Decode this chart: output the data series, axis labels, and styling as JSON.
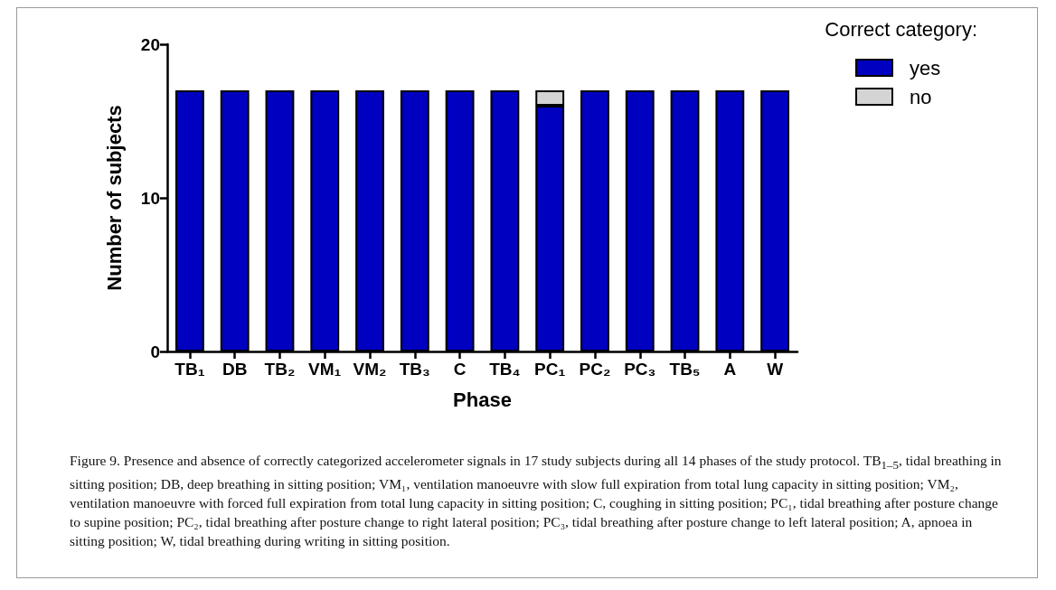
{
  "chart_data": {
    "type": "bar",
    "stacked": true,
    "xlabel": "Phase",
    "ylabel": "Number of subjects",
    "legend_title": "Correct category:",
    "legend": "top right",
    "grid": false,
    "categories": [
      "TB₁",
      "DB",
      "TB₂",
      "VM₁",
      "VM₂",
      "TB₃",
      "C",
      "TB₄",
      "PC₁",
      "PC₂",
      "PC₃",
      "TB₅",
      "A",
      "W"
    ],
    "ylim": [
      0,
      20
    ],
    "yticks": [
      0,
      10,
      20
    ],
    "series": [
      {
        "name": "yes",
        "color": "#0000c0",
        "values": [
          17,
          17,
          17,
          17,
          17,
          17,
          17,
          17,
          16,
          17,
          17,
          17,
          17,
          17
        ]
      },
      {
        "name": "no",
        "color": "#d4d4d4",
        "values": [
          null,
          null,
          null,
          null,
          null,
          null,
          null,
          null,
          1,
          null,
          null,
          null,
          null,
          null
        ]
      }
    ],
    "annotations": [
      "Figure 9. Presence and absence of correctly categorized accelerometer signals in 17 study subjects during all 14 phases of the study protocol. TB$_{1–5}$, tidal breathing in sitting position; DB, deep breathing in sitting position; VM₁, ventilation manoeuvre with slow full expiration from total lung capacity in sitting position; VM₂, ventilation manoeuvre with forced full expiration from total lung capacity in sitting position; C, coughing in sitting position; PC₁, tidal breathing after posture change to supine position; PC₂, tidal breathing after posture change to right lateral position; PC₃, tidal breathing after posture change to left lateral position; A, apnoea in sitting position; W, tidal breathing during writing in sitting position."
    ]
  }
}
